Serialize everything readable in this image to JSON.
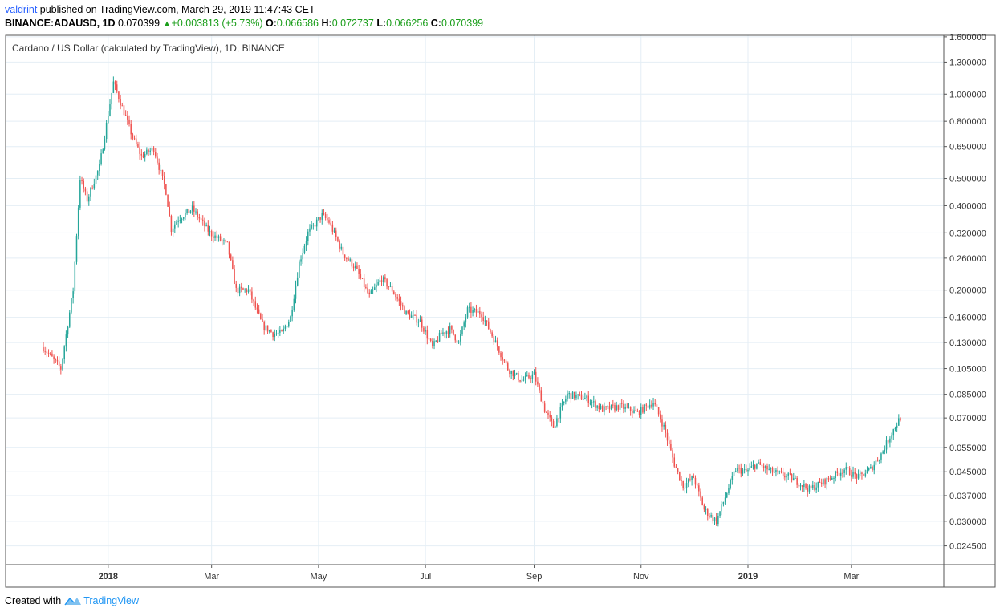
{
  "header": {
    "author": "valdrint",
    "published_text": "published on TradingView.com, March 29, 2019 11:47:43 CET",
    "symbol": "BINANCE:ADAUSD, 1D",
    "last": "0.070399",
    "change": "+0.003813 (+5.73%)",
    "o_label": "O:",
    "o_value": "0.066586",
    "h_label": "H:",
    "h_value": "0.072737",
    "l_label": "L:",
    "l_value": "0.066256",
    "c_label": "C:",
    "c_value": "0.070399"
  },
  "footer": {
    "created_with": "Created with",
    "brand": "TradingView"
  },
  "colors": {
    "up": "#26a69a",
    "down": "#ef5350",
    "grid": "#e4eef5",
    "axis": "#555555"
  },
  "chart_data": {
    "type": "candlestick",
    "title": "Cardano / US Dollar (calculated by TradingView), 1D, BINANCE",
    "y_scale": "log",
    "ylim": [
      0.021,
      1.62
    ],
    "grid": true,
    "y_ticks": [
      "1.600000",
      "1.300000",
      "1.000000",
      "0.800000",
      "0.650000",
      "0.500000",
      "0.400000",
      "0.320000",
      "0.260000",
      "0.200000",
      "0.160000",
      "0.130000",
      "0.105000",
      "0.085000",
      "0.070000",
      "0.055000",
      "0.045000",
      "0.037000",
      "0.030000",
      "0.024500"
    ],
    "x_ticks": [
      {
        "label": "2018",
        "bold": true
      },
      {
        "label": "Mar",
        "bold": false
      },
      {
        "label": "May",
        "bold": false
      },
      {
        "label": "Jul",
        "bold": false
      },
      {
        "label": "Sep",
        "bold": false
      },
      {
        "label": "Nov",
        "bold": false
      },
      {
        "label": "2019",
        "bold": true
      },
      {
        "label": "Mar",
        "bold": false
      }
    ],
    "series": [
      {
        "date": "2017-11-25",
        "close": 0.125
      },
      {
        "date": "2017-12-05",
        "close": 0.105
      },
      {
        "date": "2017-12-12",
        "close": 0.2
      },
      {
        "date": "2017-12-16",
        "close": 0.5
      },
      {
        "date": "2017-12-20",
        "close": 0.42
      },
      {
        "date": "2017-12-27",
        "close": 0.55
      },
      {
        "date": "2018-01-01",
        "close": 0.85
      },
      {
        "date": "2018-01-04",
        "close": 1.1
      },
      {
        "date": "2018-01-09",
        "close": 0.9
      },
      {
        "date": "2018-01-15",
        "close": 0.7
      },
      {
        "date": "2018-01-20",
        "close": 0.6
      },
      {
        "date": "2018-01-27",
        "close": 0.64
      },
      {
        "date": "2018-02-03",
        "close": 0.45
      },
      {
        "date": "2018-02-06",
        "close": 0.33
      },
      {
        "date": "2018-02-10",
        "close": 0.36
      },
      {
        "date": "2018-02-18",
        "close": 0.39
      },
      {
        "date": "2018-02-28",
        "close": 0.32
      },
      {
        "date": "2018-03-10",
        "close": 0.29
      },
      {
        "date": "2018-03-15",
        "close": 0.2
      },
      {
        "date": "2018-03-22",
        "close": 0.2
      },
      {
        "date": "2018-03-30",
        "close": 0.15
      },
      {
        "date": "2018-04-05",
        "close": 0.14
      },
      {
        "date": "2018-04-10",
        "close": 0.14
      },
      {
        "date": "2018-04-15",
        "close": 0.16
      },
      {
        "date": "2018-04-20",
        "close": 0.25
      },
      {
        "date": "2018-04-25",
        "close": 0.32
      },
      {
        "date": "2018-05-03",
        "close": 0.37
      },
      {
        "date": "2018-05-07",
        "close": 0.35
      },
      {
        "date": "2018-05-15",
        "close": 0.27
      },
      {
        "date": "2018-05-22",
        "close": 0.24
      },
      {
        "date": "2018-05-30",
        "close": 0.19
      },
      {
        "date": "2018-06-06",
        "close": 0.22
      },
      {
        "date": "2018-06-12",
        "close": 0.2
      },
      {
        "date": "2018-06-20",
        "close": 0.165
      },
      {
        "date": "2018-06-28",
        "close": 0.155
      },
      {
        "date": "2018-07-05",
        "close": 0.125
      },
      {
        "date": "2018-07-10",
        "close": 0.14
      },
      {
        "date": "2018-07-15",
        "close": 0.145
      },
      {
        "date": "2018-07-20",
        "close": 0.13
      },
      {
        "date": "2018-07-25",
        "close": 0.17
      },
      {
        "date": "2018-08-02",
        "close": 0.165
      },
      {
        "date": "2018-08-10",
        "close": 0.13
      },
      {
        "date": "2018-08-17",
        "close": 0.105
      },
      {
        "date": "2018-08-25",
        "close": 0.095
      },
      {
        "date": "2018-09-01",
        "close": 0.1
      },
      {
        "date": "2018-09-07",
        "close": 0.075
      },
      {
        "date": "2018-09-12",
        "close": 0.065
      },
      {
        "date": "2018-09-20",
        "close": 0.085
      },
      {
        "date": "2018-10-01",
        "close": 0.082
      },
      {
        "date": "2018-10-10",
        "close": 0.075
      },
      {
        "date": "2018-10-20",
        "close": 0.077
      },
      {
        "date": "2018-10-30",
        "close": 0.073
      },
      {
        "date": "2018-11-08",
        "close": 0.08
      },
      {
        "date": "2018-11-14",
        "close": 0.065
      },
      {
        "date": "2018-11-20",
        "close": 0.048
      },
      {
        "date": "2018-11-25",
        "close": 0.04
      },
      {
        "date": "2018-12-01",
        "close": 0.043
      },
      {
        "date": "2018-12-07",
        "close": 0.033
      },
      {
        "date": "2018-12-14",
        "close": 0.03
      },
      {
        "date": "2018-12-20",
        "close": 0.038
      },
      {
        "date": "2018-12-25",
        "close": 0.046
      },
      {
        "date": "2018-12-31",
        "close": 0.045
      },
      {
        "date": "2019-01-06",
        "close": 0.048
      },
      {
        "date": "2019-01-15",
        "close": 0.045
      },
      {
        "date": "2019-01-25",
        "close": 0.043
      },
      {
        "date": "2019-02-05",
        "close": 0.039
      },
      {
        "date": "2019-02-15",
        "close": 0.042
      },
      {
        "date": "2019-02-25",
        "close": 0.046
      },
      {
        "date": "2019-03-05",
        "close": 0.043
      },
      {
        "date": "2019-03-12",
        "close": 0.046
      },
      {
        "date": "2019-03-18",
        "close": 0.052
      },
      {
        "date": "2019-03-24",
        "close": 0.062
      },
      {
        "date": "2019-03-29",
        "close": 0.070399
      }
    ]
  }
}
